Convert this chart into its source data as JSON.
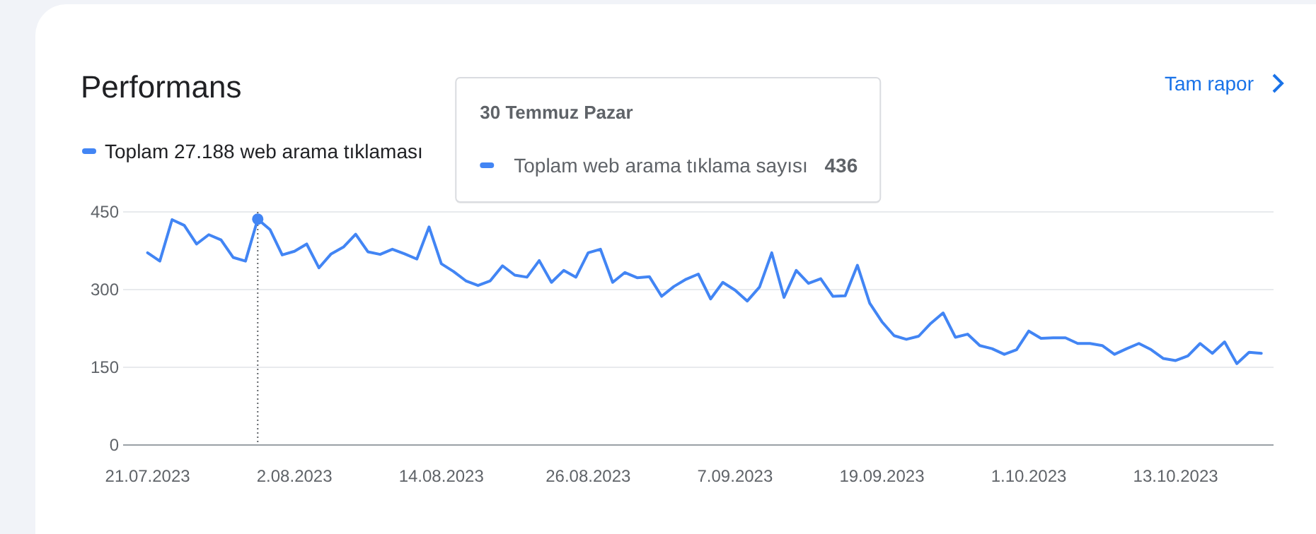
{
  "chart_data": {
    "type": "line",
    "title": "Performans",
    "annotations": [
      "Tam rapor",
      "30 Temmuz Pazar",
      "Toplam web arama tıklama sayısı",
      "436"
    ],
    "x": [
      "2023-07-21",
      "2023-07-22",
      "2023-07-23",
      "2023-07-24",
      "2023-07-25",
      "2023-07-26",
      "2023-07-27",
      "2023-07-28",
      "2023-07-29",
      "2023-07-30",
      "2023-07-31",
      "2023-08-01",
      "2023-08-02",
      "2023-08-03",
      "2023-08-04",
      "2023-08-05",
      "2023-08-06",
      "2023-08-07",
      "2023-08-08",
      "2023-08-09",
      "2023-08-10",
      "2023-08-11",
      "2023-08-12",
      "2023-08-13",
      "2023-08-14",
      "2023-08-15",
      "2023-08-16",
      "2023-08-17",
      "2023-08-18",
      "2023-08-19",
      "2023-08-20",
      "2023-08-21",
      "2023-08-22",
      "2023-08-23",
      "2023-08-24",
      "2023-08-25",
      "2023-08-26",
      "2023-08-27",
      "2023-08-28",
      "2023-08-29",
      "2023-08-30",
      "2023-08-31",
      "2023-09-01",
      "2023-09-02",
      "2023-09-03",
      "2023-09-04",
      "2023-09-05",
      "2023-09-06",
      "2023-09-07",
      "2023-09-08",
      "2023-09-09",
      "2023-09-10",
      "2023-09-11",
      "2023-09-12",
      "2023-09-13",
      "2023-09-14",
      "2023-09-15",
      "2023-09-16",
      "2023-09-17",
      "2023-09-18",
      "2023-09-19",
      "2023-09-20",
      "2023-09-21",
      "2023-09-22",
      "2023-09-23",
      "2023-09-24",
      "2023-09-25",
      "2023-09-26",
      "2023-09-27",
      "2023-09-28",
      "2023-09-29",
      "2023-09-30",
      "2023-10-01",
      "2023-10-02",
      "2023-10-03",
      "2023-10-04",
      "2023-10-05",
      "2023-10-06",
      "2023-10-07",
      "2023-10-08",
      "2023-10-09",
      "2023-10-10",
      "2023-10-11",
      "2023-10-12",
      "2023-10-13",
      "2023-10-14",
      "2023-10-15",
      "2023-10-16",
      "2023-10-17",
      "2023-10-18",
      "2023-10-19",
      "2023-10-20"
    ],
    "series": [
      {
        "name": "Toplam 27.188 web arama tıklaması",
        "color": "#4285f4",
        "values": [
          371,
          355,
          435,
          424,
          388,
          406,
          396,
          362,
          355,
          436,
          416,
          367,
          374,
          388,
          342,
          369,
          382,
          407,
          373,
          368,
          378,
          369,
          359,
          421,
          350,
          335,
          317,
          308,
          317,
          346,
          328,
          324,
          356,
          314,
          337,
          324,
          371,
          378,
          314,
          333,
          323,
          325,
          287,
          306,
          320,
          330,
          282,
          314,
          299,
          278,
          305,
          371,
          285,
          337,
          312,
          321,
          287,
          288,
          347,
          274,
          238,
          211,
          204,
          210,
          235,
          255,
          208,
          214,
          192,
          186,
          175,
          184,
          220,
          206,
          207,
          207,
          196,
          196,
          192,
          175,
          186,
          196,
          184,
          167,
          163,
          172,
          196,
          177,
          199,
          157,
          179,
          177
        ]
      }
    ],
    "xlim": [
      "2023-07-19",
      "2023-10-21"
    ],
    "ylim": [
      0,
      450
    ],
    "xticks": [
      {
        "value": "2023-07-21",
        "label": "21.07.2023"
      },
      {
        "value": "2023-08-02",
        "label": "2.08.2023"
      },
      {
        "value": "2023-08-14",
        "label": "14.08.2023"
      },
      {
        "value": "2023-08-26",
        "label": "26.08.2023"
      },
      {
        "value": "2023-09-07",
        "label": "7.09.2023"
      },
      {
        "value": "2023-09-19",
        "label": "19.09.2023"
      },
      {
        "value": "2023-10-01",
        "label": "1.10.2023"
      },
      {
        "value": "2023-10-13",
        "label": "13.10.2023"
      }
    ],
    "yticks": [
      0,
      150,
      300,
      450
    ],
    "grid": "y",
    "legend": "top left",
    "ref_lines": [
      {
        "axis": "x",
        "value": "2023-07-30",
        "line_style": "dotted"
      }
    ]
  }
}
